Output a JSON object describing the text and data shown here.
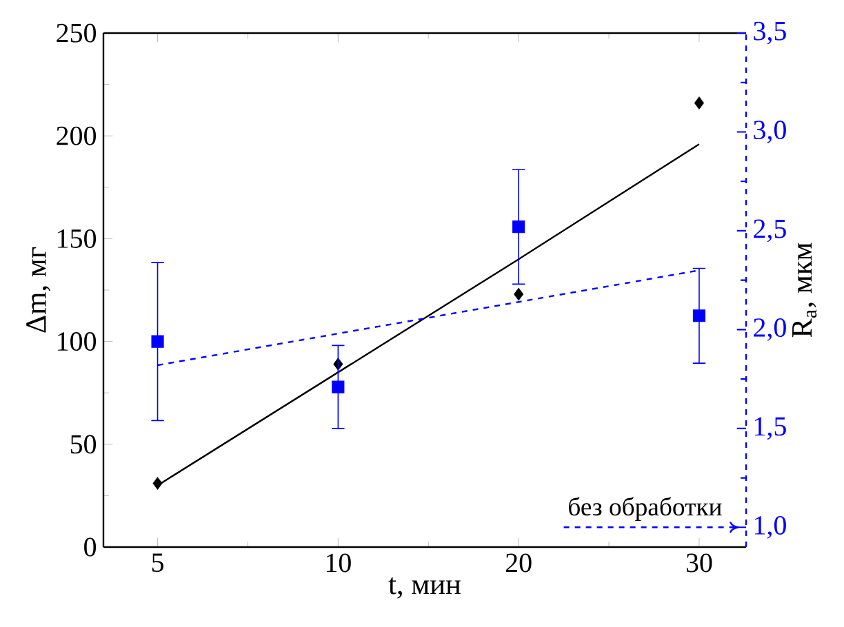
{
  "chart_data": {
    "type": "scatter",
    "xlabel": "t, мин",
    "ylabel": "Δm, мг",
    "y2label": "R$_{a}$, мкм",
    "categories": [
      "5",
      "10",
      "20",
      "30"
    ],
    "series": [
      {
        "color": "#000000",
        "marker": "diamond",
        "values": [
          31,
          89,
          123,
          216
        ]
      },
      {
        "type": "line",
        "color": "#000000",
        "line_style": "solid",
        "values": [
          30,
          85,
          140,
          196
        ]
      },
      {
        "color": "#0000ff",
        "marker": "square",
        "axis": "y2",
        "values": [
          1.94,
          1.71,
          2.52,
          2.07
        ],
        "errors": [
          [
            1.54,
            2.34
          ],
          [
            1.5,
            1.92
          ],
          [
            2.23,
            2.81
          ],
          [
            1.83,
            2.31
          ]
        ]
      },
      {
        "type": "line",
        "color": "#0000ff",
        "line_style": "dashed",
        "axis": "y2",
        "values": [
          1.82,
          1.98,
          2.14,
          2.3
        ]
      }
    ],
    "ylim": [
      0,
      250
    ],
    "yticks": [
      0,
      50,
      100,
      150,
      200,
      250
    ],
    "y2lim": [
      0.9,
      3.5
    ],
    "y2ticks": [
      {
        "value": 1.0,
        "label": "1,0"
      },
      {
        "value": 1.5,
        "label": "1,5"
      },
      {
        "value": 2.0,
        "label": "2,0"
      },
      {
        "value": 2.5,
        "label": "2,5"
      },
      {
        "value": 3.0,
        "label": "3,0"
      },
      {
        "value": 3.5,
        "label": "3,5"
      }
    ],
    "ref_lines": [
      {
        "axis": "y2",
        "value": 1.0,
        "label": "без обработки",
        "color": "#0000ff",
        "line_style": "dashed"
      }
    ],
    "grid": false
  }
}
